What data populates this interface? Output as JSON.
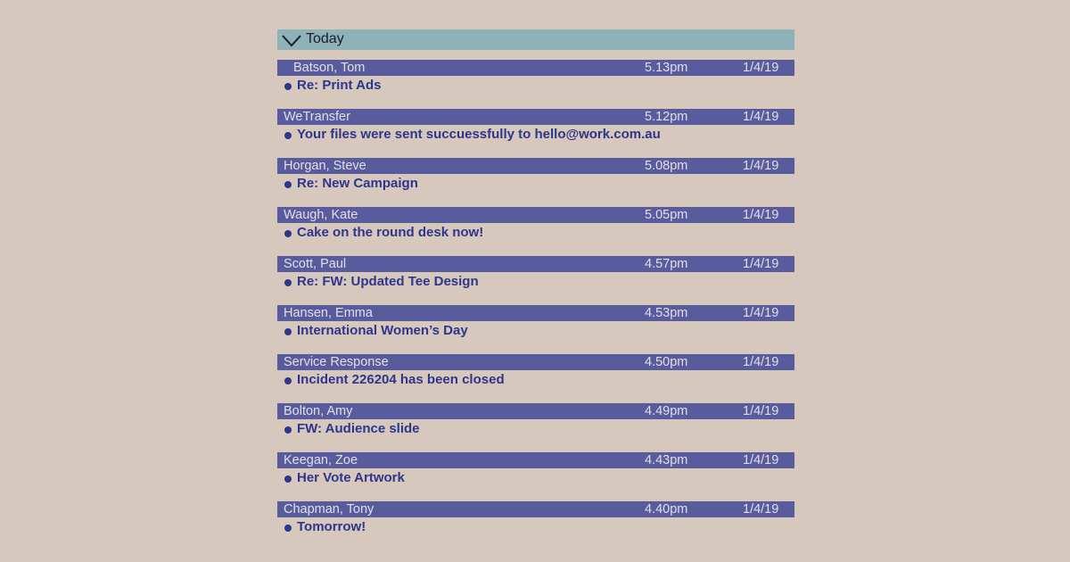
{
  "group": {
    "title": "Today",
    "icon": "chevron-down-icon"
  },
  "colors": {
    "background": "#d6c8bc",
    "group_header": "#8fb2b8",
    "row_bar": "#585c9c",
    "unread_accent": "#2e358c"
  },
  "messages": [
    {
      "sender": "Batson, Tom",
      "time": "5.13pm",
      "date": "1/4/19",
      "subject": "Re: Print Ads"
    },
    {
      "sender": "WeTransfer",
      "time": "5.12pm",
      "date": "1/4/19",
      "subject": "Your files were sent succuessfully to hello@work.com.au"
    },
    {
      "sender": "Horgan, Steve",
      "time": "5.08pm",
      "date": "1/4/19",
      "subject": "Re: New Campaign"
    },
    {
      "sender": "Waugh, Kate",
      "time": "5.05pm",
      "date": "1/4/19",
      "subject": "Cake on the round desk now!"
    },
    {
      "sender": "Scott, Paul",
      "time": "4.57pm",
      "date": "1/4/19",
      "subject": "Re: FW: Updated Tee Design"
    },
    {
      "sender": "Hansen, Emma",
      "time": "4.53pm",
      "date": "1/4/19",
      "subject": "International Women’s Day"
    },
    {
      "sender": "Service Response",
      "time": "4.50pm",
      "date": "1/4/19",
      "subject": "Incident 226204 has been closed"
    },
    {
      "sender": "Bolton, Amy",
      "time": "4.49pm",
      "date": "1/4/19",
      "subject": "FW: Audience slide"
    },
    {
      "sender": "Keegan, Zoe",
      "time": "4.43pm",
      "date": "1/4/19",
      "subject": "Her Vote Artwork"
    },
    {
      "sender": "Chapman, Tony",
      "time": "4.40pm",
      "date": "1/4/19",
      "subject": "Tomorrow!"
    }
  ]
}
